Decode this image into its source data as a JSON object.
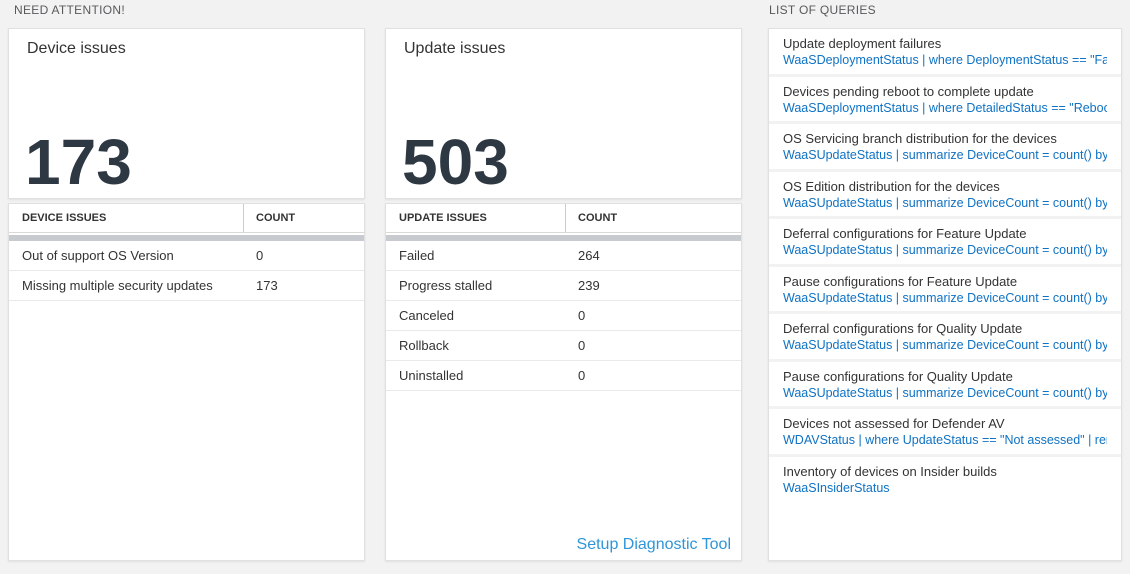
{
  "sections": {
    "need_attention": "NEED ATTENTION!",
    "list_of_queries": "LIST OF QUERIES"
  },
  "device_issues": {
    "title": "Device issues",
    "count": "173",
    "table": {
      "headers": [
        "DEVICE ISSUES",
        "COUNT"
      ],
      "rows": [
        {
          "label": "Out of support OS Version",
          "count": "0"
        },
        {
          "label": "Missing multiple security updates",
          "count": "173"
        }
      ]
    }
  },
  "update_issues": {
    "title": "Update issues",
    "count": "503",
    "table": {
      "headers": [
        "UPDATE ISSUES",
        "COUNT"
      ],
      "rows": [
        {
          "label": "Failed",
          "count": "264"
        },
        {
          "label": "Progress stalled",
          "count": "239"
        },
        {
          "label": "Canceled",
          "count": "0"
        },
        {
          "label": "Rollback",
          "count": "0"
        },
        {
          "label": "Uninstalled",
          "count": "0"
        }
      ]
    },
    "link": "Setup Diagnostic Tool"
  },
  "queries": {
    "items": [
      {
        "title": "Update deployment failures",
        "query": "WaaSDeploymentStatus | where DeploymentStatus == \"Failed\" |..."
      },
      {
        "title": "Devices pending reboot to complete update",
        "query": "WaaSDeploymentStatus | where DetailedStatus == \"Reboot pend..."
      },
      {
        "title": "OS Servicing branch distribution for the devices",
        "query": "WaaSUpdateStatus | summarize DeviceCount = count() by OSSer..."
      },
      {
        "title": "OS Edition distribution for the devices",
        "query": "WaaSUpdateStatus | summarize DeviceCount = count() by OSEdit..."
      },
      {
        "title": "Deferral configurations for Feature Update",
        "query": "WaaSUpdateStatus | summarize DeviceCount = count() by Featur..."
      },
      {
        "title": "Pause configurations for Feature Update",
        "query": "WaaSUpdateStatus | summarize DeviceCount = count() by Featur..."
      },
      {
        "title": "Deferral configurations for Quality Update",
        "query": "WaaSUpdateStatus | summarize DeviceCount = count() by Qualit..."
      },
      {
        "title": "Pause configurations for Quality Update",
        "query": "WaaSUpdateStatus | summarize DeviceCount = count() by Qualit..."
      },
      {
        "title": "Devices not assessed for Defender AV",
        "query": "WDAVStatus | where UpdateStatus == \"Not assessed\" | render ta..."
      },
      {
        "title": "Inventory of devices on Insider builds",
        "query": "WaaSInsiderStatus"
      }
    ]
  },
  "colors": {
    "page_bg": "#f2f2f2",
    "accent_blue": "#0f72c4",
    "link_blue": "#2e96d8",
    "number_color": "#2e3843",
    "header_bar_gray": "#c7cbcf"
  }
}
